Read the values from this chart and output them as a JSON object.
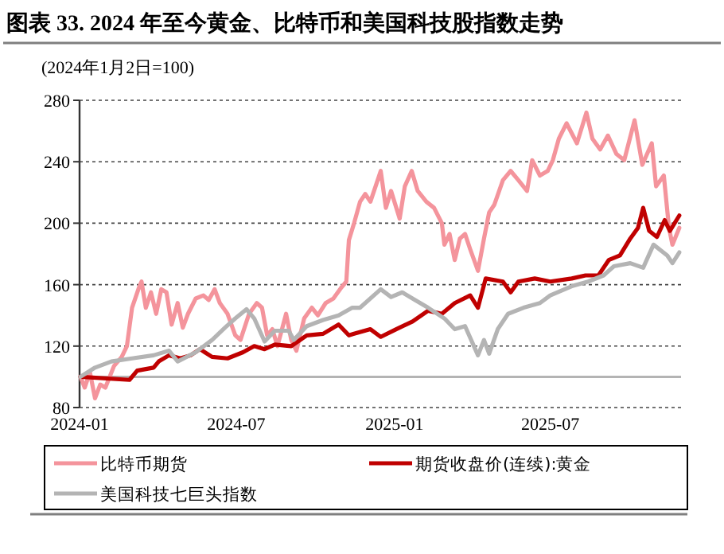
{
  "chart_data": {
    "type": "line",
    "title": "图表 33. 2024 年至今黄金、比特币和美国科技股指数走势",
    "subtitle": "(2024年1月2日=100)",
    "xlim": [
      "2024-01-01",
      "2025-11-30"
    ],
    "xticks": [
      "2024-01",
      "2024-07",
      "2025-01",
      "2025-07"
    ],
    "ylim": [
      80,
      280
    ],
    "yticks": [
      80,
      120,
      160,
      200,
      240,
      280
    ],
    "grid": "y",
    "legend": "bottom",
    "ref_lines": [
      {
        "axis": "y",
        "value": 100,
        "color": "#b4b4b4"
      }
    ],
    "series": [
      {
        "name": "比特币期货",
        "color": "#f4949c",
        "x": [
          "2024-01-02",
          "2024-01-07",
          "2024-01-13",
          "2024-01-19",
          "2024-01-25",
          "2024-01-31",
          "2024-02-10",
          "2024-02-19",
          "2024-02-25",
          "2024-03-02",
          "2024-03-10",
          "2024-03-13",
          "2024-03-18",
          "2024-03-24",
          "2024-03-30",
          "2024-04-05",
          "2024-04-11",
          "2024-04-17",
          "2024-04-24",
          "2024-04-30",
          "2024-05-06",
          "2024-05-15",
          "2024-05-24",
          "2024-05-30",
          "2024-06-06",
          "2024-06-12",
          "2024-06-21",
          "2024-06-30",
          "2024-07-06",
          "2024-07-16",
          "2024-07-25",
          "2024-07-31",
          "2024-08-06",
          "2024-08-12",
          "2024-08-18",
          "2024-08-28",
          "2024-09-03",
          "2024-09-09",
          "2024-09-18",
          "2024-09-27",
          "2024-10-04",
          "2024-10-13",
          "2024-10-22",
          "2024-10-31",
          "2024-11-06",
          "2024-11-09",
          "2024-11-15",
          "2024-11-22",
          "2024-11-28",
          "2024-12-04",
          "2024-12-10",
          "2024-12-16",
          "2024-12-22",
          "2024-12-28",
          "2025-01-07",
          "2025-01-13",
          "2025-01-21",
          "2025-01-28",
          "2025-02-07",
          "2025-02-16",
          "2025-02-25",
          "2025-02-28",
          "2025-03-06",
          "2025-03-12",
          "2025-03-18",
          "2025-03-24",
          "2025-03-30",
          "2025-04-08",
          "2025-04-15",
          "2025-04-21",
          "2025-04-27",
          "2025-05-07",
          "2025-05-16",
          "2025-05-25",
          "2025-06-04",
          "2025-06-10",
          "2025-06-19",
          "2025-06-28",
          "2025-07-04",
          "2025-07-11",
          "2025-07-20",
          "2025-08-01",
          "2025-08-12",
          "2025-08-19",
          "2025-08-28",
          "2025-09-06",
          "2025-09-16",
          "2025-09-25",
          "2025-10-07",
          "2025-10-16",
          "2025-10-27",
          "2025-11-01",
          "2025-11-10",
          "2025-11-16",
          "2025-11-20",
          "2025-11-28"
        ],
        "values": [
          100,
          93,
          103,
          86,
          95,
          93,
          107,
          113,
          120,
          145,
          158,
          162,
          145,
          155,
          141,
          157,
          155,
          134,
          148,
          132,
          141,
          151,
          153,
          150,
          157,
          148,
          141,
          127,
          124,
          141,
          148,
          145,
          127,
          131,
          120,
          141,
          124,
          117,
          138,
          145,
          140,
          148,
          151,
          158,
          162,
          189,
          200,
          214,
          219,
          214,
          224,
          234,
          210,
          221,
          203,
          224,
          234,
          221,
          214,
          210,
          200,
          186,
          193,
          176,
          190,
          193,
          183,
          169,
          190,
          207,
          212,
          228,
          234,
          228,
          221,
          241,
          231,
          234,
          241,
          255,
          265,
          252,
          272,
          255,
          248,
          257,
          245,
          241,
          267,
          238,
          252,
          224,
          231,
          197,
          186,
          197
        ]
      },
      {
        "name": "期货收盘价(连续):黄金",
        "color": "#c00000",
        "x": [
          "2024-01-02",
          "2024-02-28",
          "2024-03-08",
          "2024-03-27",
          "2024-04-02",
          "2024-04-14",
          "2024-04-27",
          "2024-05-09",
          "2024-05-20",
          "2024-06-03",
          "2024-06-21",
          "2024-07-09",
          "2024-07-22",
          "2024-08-03",
          "2024-08-15",
          "2024-09-03",
          "2024-09-21",
          "2024-10-10",
          "2024-10-28",
          "2024-11-09",
          "2024-11-15",
          "2024-12-04",
          "2024-12-16",
          "2025-01-03",
          "2025-01-22",
          "2025-02-09",
          "2025-02-25",
          "2025-03-12",
          "2025-03-30",
          "2025-04-08",
          "2025-04-17",
          "2025-05-07",
          "2025-05-16",
          "2025-05-25",
          "2025-06-13",
          "2025-07-01",
          "2025-07-26",
          "2025-08-11",
          "2025-08-26",
          "2025-09-07",
          "2025-09-20",
          "2025-10-02",
          "2025-10-11",
          "2025-10-17",
          "2025-10-24",
          "2025-11-02",
          "2025-11-11",
          "2025-11-17",
          "2025-11-28"
        ],
        "values": [
          100,
          98,
          104,
          106,
          110,
          114,
          112,
          114,
          118,
          113,
          112,
          116,
          120,
          118,
          121,
          120,
          127,
          128,
          134,
          127,
          128,
          131,
          126,
          131,
          136,
          143,
          141,
          148,
          153,
          145,
          164,
          162,
          155,
          162,
          164,
          162,
          164,
          166,
          166,
          176,
          179,
          190,
          197,
          210,
          195,
          191,
          202,
          195,
          205
        ]
      },
      {
        "name": "美国科技七巨头指数",
        "color": "#b4b4b4",
        "x": [
          "2024-01-02",
          "2024-01-19",
          "2024-02-07",
          "2024-03-02",
          "2024-03-27",
          "2024-04-14",
          "2024-04-24",
          "2024-05-15",
          "2024-06-03",
          "2024-06-18",
          "2024-06-30",
          "2024-07-13",
          "2024-07-22",
          "2024-08-03",
          "2024-08-15",
          "2024-08-31",
          "2024-09-06",
          "2024-09-21",
          "2024-10-10",
          "2024-10-28",
          "2024-11-13",
          "2024-11-22",
          "2024-12-16",
          "2024-12-28",
          "2025-01-10",
          "2025-01-25",
          "2025-02-09",
          "2025-02-28",
          "2025-03-12",
          "2025-03-24",
          "2025-04-08",
          "2025-04-15",
          "2025-04-21",
          "2025-05-01",
          "2025-05-13",
          "2025-05-31",
          "2025-06-19",
          "2025-07-01",
          "2025-07-26",
          "2025-08-14",
          "2025-09-01",
          "2025-09-13",
          "2025-10-02",
          "2025-10-17",
          "2025-10-29",
          "2025-11-14",
          "2025-11-20",
          "2025-11-28"
        ],
        "values": [
          100,
          106,
          110,
          112,
          114,
          117,
          110,
          116,
          124,
          132,
          138,
          144,
          138,
          123,
          130,
          130,
          124,
          133,
          137,
          140,
          145,
          145,
          157,
          152,
          155,
          150,
          145,
          138,
          131,
          133,
          114,
          124,
          115,
          131,
          141,
          145,
          148,
          153,
          159,
          162,
          166,
          172,
          174,
          171,
          186,
          179,
          174,
          181
        ]
      }
    ]
  }
}
